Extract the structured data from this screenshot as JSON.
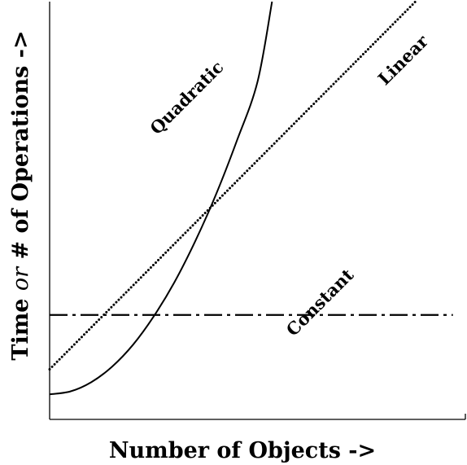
{
  "chart_data": {
    "type": "line",
    "xlabel": "Number of Objects ->",
    "ylabel": {
      "prefix": "Time ",
      "italic": "or",
      "suffix": " # of Operations ->"
    },
    "xlim": [
      0,
      100
    ],
    "ylim": [
      0,
      100
    ],
    "grid": false,
    "series": [
      {
        "name": "Quadratic",
        "style": "solid",
        "x": [
          0,
          5,
          10,
          15,
          20,
          25,
          30,
          35,
          40,
          45,
          50,
          53.5
        ],
        "y": [
          6,
          6.7,
          8.9,
          12.6,
          17.8,
          24.6,
          32.8,
          42.6,
          53.8,
          66.6,
          80.8,
          100
        ]
      },
      {
        "name": "Linear",
        "style": "dotted",
        "x": [
          0,
          88
        ],
        "y": [
          12,
          100
        ]
      },
      {
        "name": "Constant",
        "style": "dashdot",
        "x": [
          0,
          97
        ],
        "y": [
          25,
          25
        ]
      }
    ],
    "annotations": [
      {
        "text": "Quadratic",
        "x": 34,
        "y": 76,
        "rotate": -45
      },
      {
        "text": "Linear",
        "x": 86,
        "y": 85,
        "rotate": -45
      },
      {
        "text": "Constant",
        "x": 66,
        "y": 27,
        "rotate": -45
      }
    ]
  }
}
